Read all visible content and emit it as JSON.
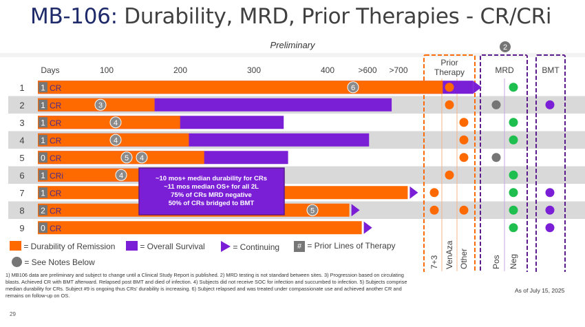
{
  "title": {
    "prefix": "MB-106:",
    "rest": " Durability, MRD, Prior Therapies - CR/CRi"
  },
  "subtitle": "Preliminary",
  "chart_data": {
    "type": "swimmer",
    "x_axis_label": "Days",
    "x_ticks": [
      "100",
      "200",
      "300",
      "400",
      ">600",
      ">700"
    ],
    "rows": [
      {
        "subject": "1",
        "prior_lines": "1",
        "response": "CR",
        "remission_end": 555,
        "os_end": 597,
        "continuing": true,
        "note": "6"
      },
      {
        "subject": "2",
        "prior_lines": "1",
        "response": "CR",
        "remission_end": 160,
        "os_end": 485,
        "continuing": false,
        "note": "3"
      },
      {
        "subject": "3",
        "prior_lines": "1",
        "response": "CR",
        "remission_end": 195,
        "os_end": 337,
        "continuing": false,
        "note": "4"
      },
      {
        "subject": "4",
        "prior_lines": "1",
        "response": "CR",
        "remission_end": 207,
        "os_end": 454,
        "continuing": false,
        "note": "4"
      },
      {
        "subject": "5",
        "prior_lines": "0",
        "response": "CR",
        "remission_end": 228,
        "os_end": 343,
        "continuing": false,
        "note": "5 4"
      },
      {
        "subject": "6",
        "prior_lines": "1",
        "response": "CRi",
        "remission_end": 155,
        "os_end": 167,
        "continuing": false,
        "note": "4"
      },
      {
        "subject": "7",
        "prior_lines": "1",
        "response": "CR",
        "remission_end": 507,
        "os_end": null,
        "continuing": true,
        "note": ""
      },
      {
        "subject": "8",
        "prior_lines": "2",
        "response": "CR",
        "remission_end": 427,
        "os_end": null,
        "continuing": true,
        "note": "5"
      },
      {
        "subject": "9",
        "prior_lines": "0",
        "response": "CR",
        "remission_end": 444,
        "os_end": null,
        "continuing": true,
        "note": ""
      }
    ],
    "prior_therapy": {
      "label": "Prior Therapy",
      "columns": [
        "7+3",
        "VenAza",
        "Other"
      ],
      "marks": [
        [
          2
        ],
        [
          2
        ],
        [
          3
        ],
        [
          3
        ],
        [
          3
        ],
        [
          2
        ],
        [
          1
        ],
        [
          1,
          3
        ],
        []
      ]
    },
    "mrd": {
      "label": "MRD",
      "note_badge": "2",
      "columns": [
        "Pos",
        "Neg"
      ],
      "values": [
        "Neg",
        "Pos",
        "Neg",
        "Neg",
        "Pos",
        "Neg",
        "Neg",
        "Neg",
        "Neg"
      ]
    },
    "bmt": {
      "label": "BMT",
      "values": [
        false,
        true,
        false,
        false,
        false,
        false,
        true,
        true,
        true
      ]
    },
    "callout": [
      "~10 mos+ median durability for CRs",
      "~11 mos median OS+ for all 2L",
      "75% of CRs MRD negative",
      "50% of CRs bridged to BMT"
    ]
  },
  "legend": {
    "remission": "= Durability of Remission",
    "survival": "= Overall Survival",
    "continuing": "= Continuing",
    "prior_lines_symbol": "#",
    "prior_lines": "= Prior Lines of Therapy",
    "notes": "= See Notes Below"
  },
  "footnote": "1) MB106 data are preliminary and subject to change until a Clinical Study Report is published. 2) MRD testing is not standard between sites. 3) Progression based on circulating blasts. Achieved CR with BMT afterward. Relapsed post BMT and died of infection. 4) Subjects did not receive SOC for infection and succumbed to infection. 5) Subjects comprise median durability for CRs. Subject #9 is ongoing thus CRs' durability is increasing. 6) Subject relapsed and was treated under compassionate use and achieved another CR and remains on follow-up on OS.",
  "as_of": "As of July 15, 2025",
  "page_number": "29",
  "colors": {
    "orange": "#ff6a00",
    "purple": "#7b1fd6",
    "green": "#1fbf4f",
    "gray": "#757575",
    "row_band": "#d9d9d9"
  }
}
